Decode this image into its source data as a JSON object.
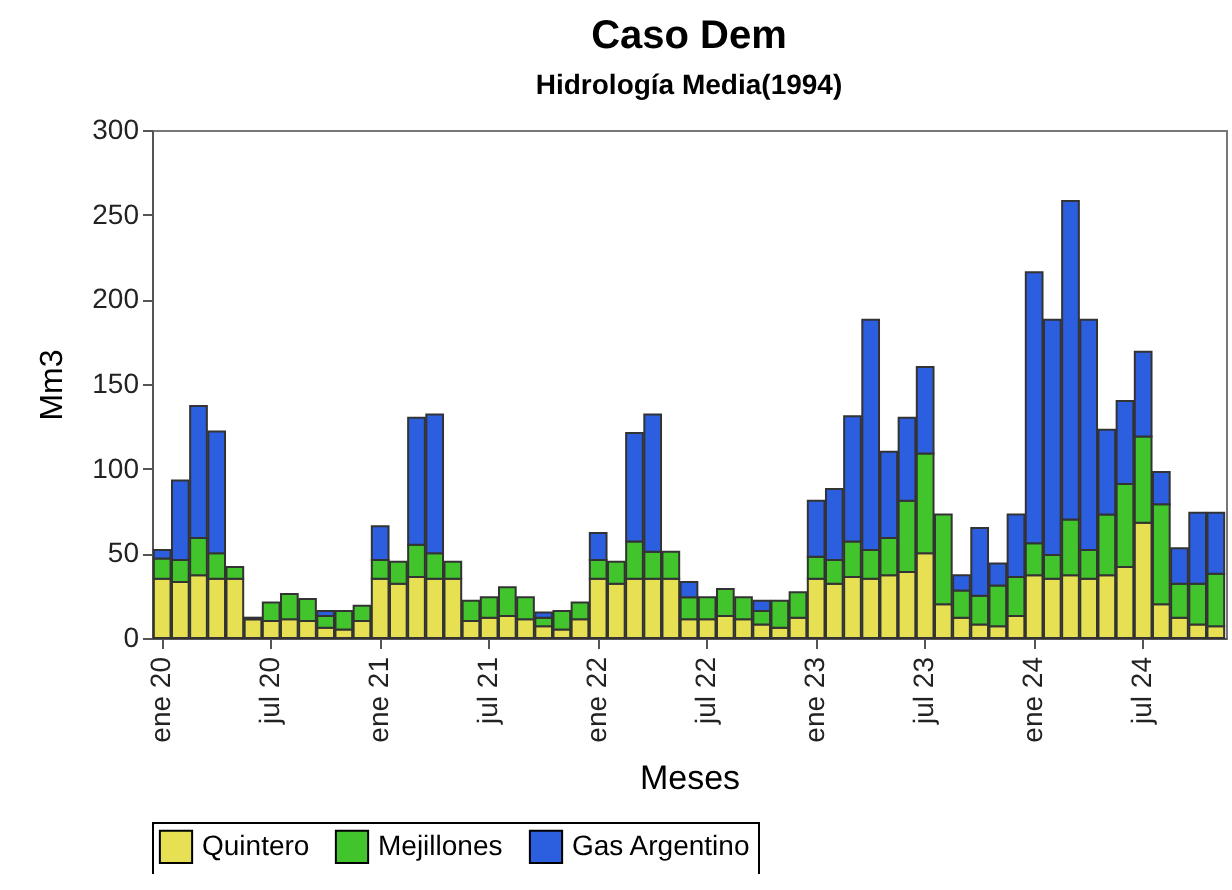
{
  "chart_data": {
    "type": "bar",
    "title": "Caso Dem",
    "subtitle": "Hidrología Media(1994)",
    "xlabel": "Meses",
    "ylabel": "Mm3",
    "categories": [
      "ene 20",
      null,
      null,
      null,
      null,
      null,
      "jul 20",
      null,
      null,
      null,
      null,
      null,
      "ene 21",
      null,
      null,
      null,
      null,
      null,
      "jul 21",
      null,
      null,
      null,
      null,
      null,
      "ene 22",
      null,
      null,
      null,
      null,
      null,
      "jul 22",
      null,
      null,
      null,
      null,
      null,
      "ene 23",
      null,
      null,
      null,
      null,
      null,
      "jul 23",
      null,
      null,
      null,
      null,
      null,
      "ene 24",
      null,
      null,
      null,
      null,
      null,
      "jul 24",
      null,
      null,
      null,
      null
    ],
    "stacked": true,
    "series": [
      {
        "name": "Quintero",
        "color": "#e6e052",
        "values": [
          35,
          33,
          37,
          35,
          35,
          11,
          10,
          11,
          10,
          6,
          5,
          10,
          35,
          32,
          36,
          35,
          35,
          10,
          12,
          13,
          11,
          7,
          5,
          11,
          35,
          32,
          35,
          35,
          35,
          11,
          11,
          13,
          11,
          8,
          6,
          12,
          35,
          32,
          36,
          35,
          37,
          39,
          50,
          20,
          12,
          8,
          7,
          13,
          37,
          35,
          37,
          35,
          37,
          42,
          68,
          20,
          12,
          8,
          7
        ]
      },
      {
        "name": "Mejillones",
        "color": "#42c42c",
        "values": [
          12,
          13,
          22,
          15,
          7,
          null,
          11,
          15,
          13,
          7,
          11,
          9,
          11,
          13,
          19,
          15,
          10,
          12,
          12,
          17,
          13,
          5,
          11,
          10,
          11,
          13,
          22,
          16,
          16,
          13,
          13,
          16,
          13,
          8,
          16,
          15,
          13,
          14,
          21,
          17,
          22,
          42,
          59,
          53,
          16,
          17,
          24,
          23,
          19,
          14,
          33,
          17,
          36,
          49,
          51,
          59,
          20,
          24,
          31
        ]
      },
      {
        "name": "Gas Argentino",
        "color": "#2b5fe0",
        "values": [
          5,
          47,
          78,
          72,
          null,
          1,
          null,
          null,
          null,
          3,
          null,
          null,
          20,
          null,
          75,
          82,
          null,
          null,
          null,
          null,
          null,
          3,
          null,
          null,
          16,
          null,
          64,
          81,
          null,
          9,
          null,
          null,
          null,
          6,
          null,
          null,
          33,
          42,
          74,
          136,
          51,
          49,
          51,
          null,
          9,
          40,
          13,
          37,
          160,
          139,
          188,
          136,
          50,
          49,
          50,
          19,
          21,
          42,
          36
        ]
      }
    ],
    "ylim": [
      0,
      300
    ],
    "yticks": [
      0,
      50,
      100,
      150,
      200,
      250,
      300
    ],
    "legend": "bottom"
  }
}
